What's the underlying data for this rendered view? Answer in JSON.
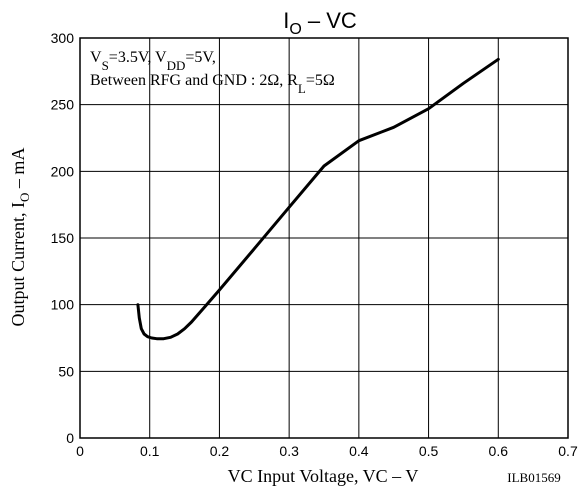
{
  "chart_data": {
    "type": "line",
    "title": {
      "main": "I",
      "sub": "O",
      "rest": " – VC"
    },
    "xlabel": "VC Input Voltage, VC – V",
    "ylabel": {
      "pre": "Output Current, I",
      "sub": "O",
      "post": " – mA"
    },
    "xlim": [
      0,
      0.7
    ],
    "ylim": [
      0,
      300
    ],
    "x_ticks": [
      0,
      0.1,
      0.2,
      0.3,
      0.4,
      0.5,
      0.6,
      0.7
    ],
    "x_tick_labels": [
      "0",
      "0.1",
      "0.2",
      "0.3",
      "0.4",
      "0.5",
      "0.6",
      "0.7"
    ],
    "y_ticks": [
      0,
      50,
      100,
      150,
      200,
      250,
      300
    ],
    "y_tick_labels": [
      "0",
      "50",
      "100",
      "150",
      "200",
      "250",
      "300"
    ],
    "grid": true,
    "annotation": {
      "line1": [
        {
          "t": "V"
        },
        {
          "t": "S",
          "sub": true
        },
        {
          "t": "=3.5V, V"
        },
        {
          "t": "DD",
          "sub": true
        },
        {
          "t": "=5V,"
        }
      ],
      "line2": [
        {
          "t": "Between RFG and GND : 2Ω, R"
        },
        {
          "t": "L",
          "sub": true
        },
        {
          "t": "=5Ω"
        }
      ]
    },
    "footnote": "ILB01569",
    "series": [
      {
        "color": "#000000",
        "x": [
          0.083,
          0.085,
          0.088,
          0.092,
          0.097,
          0.103,
          0.11,
          0.12,
          0.13,
          0.14,
          0.15,
          0.16,
          0.17,
          0.18,
          0.2,
          0.25,
          0.3,
          0.35,
          0.4,
          0.45,
          0.5,
          0.55,
          0.6
        ],
        "y": [
          100,
          90,
          82,
          78,
          76,
          75,
          74.5,
          74.5,
          75.5,
          78,
          82,
          87,
          93,
          99,
          111,
          142,
          173,
          204,
          223,
          233,
          247,
          266,
          284
        ]
      }
    ]
  }
}
